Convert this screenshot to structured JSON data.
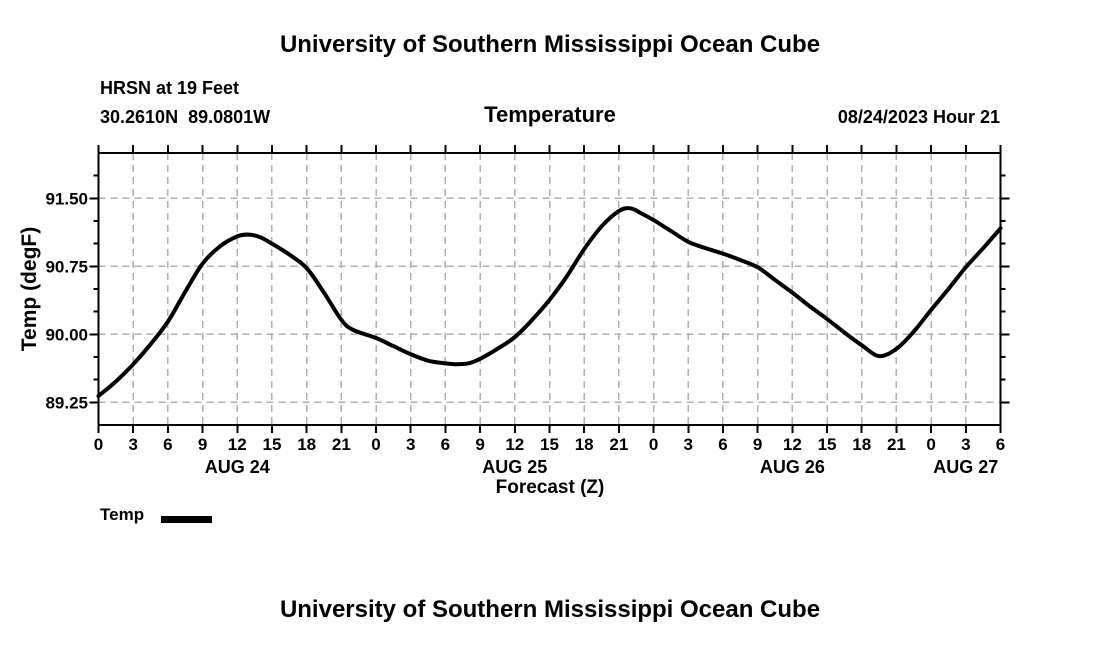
{
  "header": {
    "title": "University of Southern Mississippi Ocean Cube",
    "station": "HRSN at 19 Feet",
    "coordinates": "30.2610N  89.0801W",
    "datetime": "08/24/2023 Hour 21"
  },
  "chart_data": {
    "type": "line",
    "title": "Temperature",
    "xlabel": "Forecast (Z)",
    "ylabel": "Temp (degF)",
    "x_domain": [
      0,
      78
    ],
    "y_domain": [
      89.0,
      92.0
    ],
    "x_tick_step": 3,
    "x_tick_labels": [
      "0",
      "3",
      "6",
      "9",
      "12",
      "15",
      "18",
      "21",
      "0",
      "3",
      "6",
      "9",
      "12",
      "15",
      "18",
      "21",
      "0",
      "3",
      "6",
      "9",
      "12",
      "15",
      "18",
      "21",
      "0",
      "3",
      "6"
    ],
    "day_labels": [
      {
        "label": "AUG 24",
        "hour": 12
      },
      {
        "label": "AUG 25",
        "hour": 36
      },
      {
        "label": "AUG 26",
        "hour": 60
      },
      {
        "label": "AUG 27",
        "hour": 75
      }
    ],
    "y_major_ticks": [
      89.25,
      90.0,
      90.75,
      91.5
    ],
    "y_tick_labels": [
      "89.25",
      "90.00",
      "90.75",
      "91.50"
    ],
    "y_minor_step": 0.25,
    "grid": true,
    "grid_color": "#b0b0b0",
    "frame_color": "#000000",
    "legend": {
      "label": "Temp",
      "position": "bottom-left"
    },
    "series": [
      {
        "name": "Temp",
        "color": "#000000",
        "points": [
          [
            0,
            89.32
          ],
          [
            1.5,
            89.48
          ],
          [
            3,
            89.67
          ],
          [
            4.5,
            89.89
          ],
          [
            6,
            90.14
          ],
          [
            7.5,
            90.47
          ],
          [
            9,
            90.78
          ],
          [
            10.5,
            90.97
          ],
          [
            12,
            91.08
          ],
          [
            13,
            91.1
          ],
          [
            14,
            91.07
          ],
          [
            15,
            91.0
          ],
          [
            16.5,
            90.88
          ],
          [
            18,
            90.73
          ],
          [
            19.5,
            90.46
          ],
          [
            21,
            90.16
          ],
          [
            22,
            90.05
          ],
          [
            24,
            89.96
          ],
          [
            25.5,
            89.87
          ],
          [
            27,
            89.78
          ],
          [
            28.5,
            89.71
          ],
          [
            30,
            89.68
          ],
          [
            31,
            89.67
          ],
          [
            32,
            89.68
          ],
          [
            33,
            89.73
          ],
          [
            34.5,
            89.84
          ],
          [
            36,
            89.97
          ],
          [
            37.5,
            90.16
          ],
          [
            39,
            90.38
          ],
          [
            40.5,
            90.64
          ],
          [
            42,
            90.94
          ],
          [
            43.5,
            91.19
          ],
          [
            45,
            91.36
          ],
          [
            46,
            91.39
          ],
          [
            47,
            91.33
          ],
          [
            48,
            91.26
          ],
          [
            49.5,
            91.14
          ],
          [
            51,
            91.02
          ],
          [
            52.5,
            90.95
          ],
          [
            54,
            90.89
          ],
          [
            55.5,
            90.82
          ],
          [
            57,
            90.74
          ],
          [
            58.5,
            90.6
          ],
          [
            60,
            90.46
          ],
          [
            61.5,
            90.31
          ],
          [
            63,
            90.17
          ],
          [
            64.5,
            90.02
          ],
          [
            66,
            89.88
          ],
          [
            67.5,
            89.76
          ],
          [
            69,
            89.84
          ],
          [
            70.5,
            90.03
          ],
          [
            72,
            90.27
          ],
          [
            73.5,
            90.5
          ],
          [
            75,
            90.74
          ],
          [
            76.5,
            90.95
          ],
          [
            78,
            91.17
          ]
        ]
      }
    ]
  },
  "footer": {
    "title": "University of Southern Mississippi Ocean Cube"
  }
}
